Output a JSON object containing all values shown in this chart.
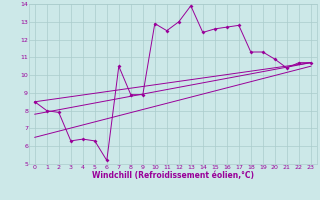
{
  "background_color": "#cce8e8",
  "grid_color": "#aacccc",
  "line_color": "#990099",
  "xlim": [
    -0.5,
    23.5
  ],
  "ylim": [
    5,
    14
  ],
  "xlabel": "Windchill (Refroidissement éolien,°C)",
  "xlabel_fontsize": 5.5,
  "line1_x": [
    0,
    1,
    2,
    3,
    4,
    5,
    6,
    7,
    8,
    9,
    10,
    11,
    12,
    13,
    14,
    15,
    16,
    17,
    18,
    19,
    20,
    21,
    22,
    23
  ],
  "line1_y": [
    8.5,
    8.0,
    7.9,
    6.3,
    6.4,
    6.3,
    5.2,
    10.5,
    8.9,
    8.9,
    12.9,
    12.5,
    13.0,
    13.9,
    12.4,
    12.6,
    12.7,
    12.8,
    11.3,
    11.3,
    10.9,
    10.4,
    10.7,
    10.7
  ],
  "line2_x": [
    0,
    23
  ],
  "line2_y": [
    7.8,
    10.7
  ],
  "line3_x": [
    0,
    23
  ],
  "line3_y": [
    6.5,
    10.5
  ],
  "line4_x": [
    0,
    23
  ],
  "line4_y": [
    8.5,
    10.7
  ],
  "tick_fontsize": 4.5,
  "xtick_vals": [
    0,
    1,
    2,
    3,
    4,
    5,
    6,
    7,
    8,
    9,
    10,
    11,
    12,
    13,
    14,
    15,
    16,
    17,
    18,
    19,
    20,
    21,
    22,
    23
  ],
  "xtick_labels": [
    "0",
    "1",
    "2",
    "3",
    "4",
    "5",
    "6",
    "7",
    "8",
    "9",
    "10",
    "11",
    "12",
    "13",
    "14",
    "15",
    "16",
    "17",
    "18",
    "19",
    "20",
    "21",
    "22",
    "23"
  ],
  "ytick_vals": [
    5,
    6,
    7,
    8,
    9,
    10,
    11,
    12,
    13,
    14
  ],
  "ytick_labels": [
    "5",
    "6",
    "7",
    "8",
    "9",
    "10",
    "11",
    "12",
    "13",
    "14"
  ]
}
